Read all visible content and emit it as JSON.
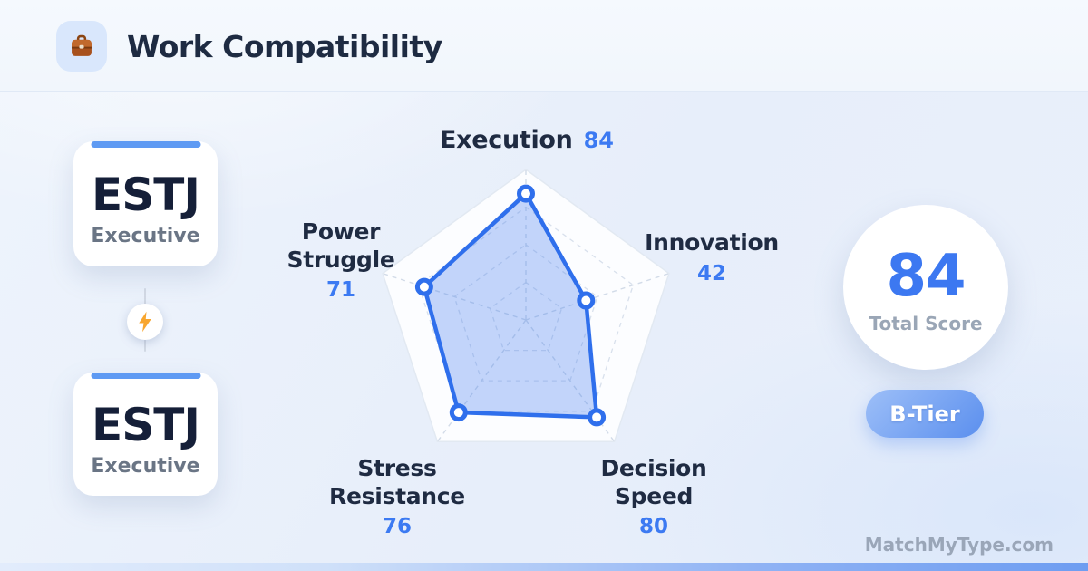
{
  "header": {
    "icon": "briefcase-icon",
    "title": "Work Compatibility"
  },
  "match": {
    "left_type": {
      "code": "ESTJ",
      "name": "Executive"
    },
    "right_type": {
      "code": "ESTJ",
      "name": "Executive"
    },
    "vs_icon": "lightning-bolt-icon"
  },
  "chart_data": {
    "type": "radar",
    "max": 100,
    "grid_levels": [
      0.25,
      0.5,
      0.75,
      1
    ],
    "legend": "none",
    "axes": [
      {
        "label": "Execution",
        "value": 84
      },
      {
        "label": "Innovation",
        "value": 42
      },
      {
        "label": "Decision Speed",
        "value": 80
      },
      {
        "label": "Stress Resistance",
        "value": 76
      },
      {
        "label": "Power Struggle",
        "value": 71
      }
    ],
    "colors": {
      "stroke": "#2f6fec",
      "fill": "rgba(59,118,240,0.30)",
      "marker_fill": "#ffffff",
      "value_text": "#3c7af2"
    }
  },
  "summary": {
    "total_score": "84",
    "total_label": "Total Score",
    "tier": "B-Tier"
  },
  "watermark": "MatchMyType.com"
}
